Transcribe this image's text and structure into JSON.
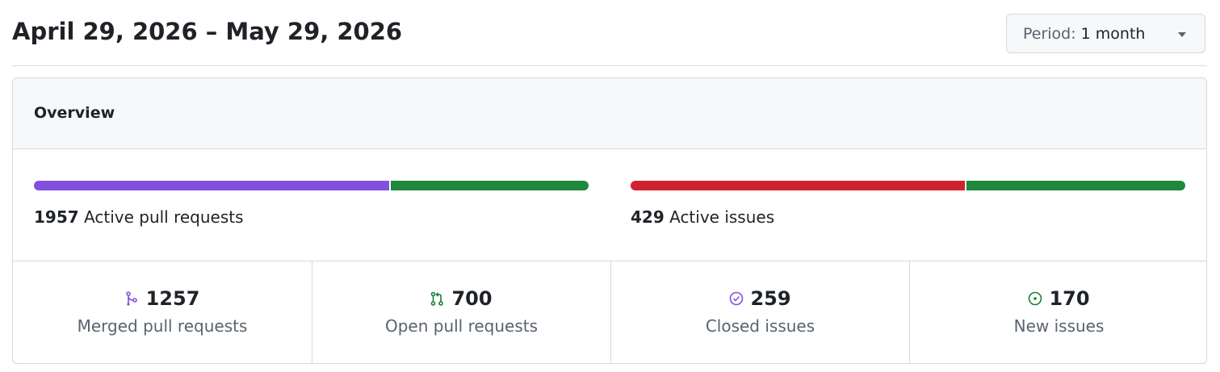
{
  "header": {
    "title": "April 29, 2026 – May 29, 2026",
    "period_label": "Period:",
    "period_value": "1 month"
  },
  "overview": {
    "title": "Overview",
    "summaries": [
      {
        "count": 1957,
        "label": "Active pull requests"
      },
      {
        "count": 429,
        "label": "Active issues"
      }
    ],
    "stats": [
      {
        "count": 1257,
        "label": "Merged pull requests",
        "icon": "merged",
        "icon_color": "#8250df",
        "bar_color": "#8250df"
      },
      {
        "count": 700,
        "label": "Open pull requests",
        "icon": "pull",
        "icon_color": "#1a7f37",
        "bar_color": "#1f883d"
      },
      {
        "count": 259,
        "label": "Closed issues",
        "icon": "closed",
        "icon_color": "#8250df",
        "bar_color": "#cf222e"
      },
      {
        "count": 170,
        "label": "New issues",
        "icon": "open",
        "icon_color": "#1a7f37",
        "bar_color": "#1f883d"
      }
    ]
  }
}
